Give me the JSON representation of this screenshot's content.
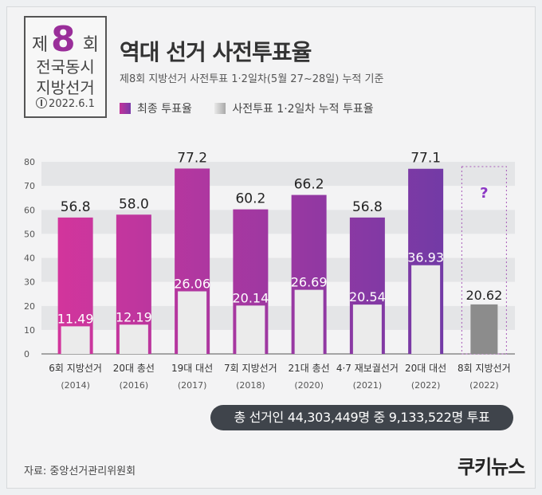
{
  "logo": {
    "top_left": "제",
    "number": "8",
    "top_right": "회",
    "line2": "전국동시",
    "line3": "지방선거",
    "date": "2022.6.1"
  },
  "header": {
    "title": "역대 선거 사전투표율",
    "subtitle": "제8회 지방선거 사전투표 1·2일차(5월 27~28일) 누적 기준"
  },
  "legend": {
    "final": "최종 투표율",
    "early": "사전투표 1·2일차 누적 투표율"
  },
  "summary_text": "총 선거인 44,303,449명 중 9,133,522명 투표",
  "source": "자료: 중앙선거관리위원회",
  "brand": {
    "text": "쿠키뉴스"
  },
  "colors": {
    "final_gradient_start": "#d5359c",
    "final_gradient_end": "#6e3aa6",
    "early_bar": "#ebebeb",
    "current_bar": "#8c8c8c",
    "question_mark": "#8b37c4",
    "band_dark": "#e4e5e7",
    "band_light": "#f3f3f4"
  },
  "chart_data": {
    "type": "bar",
    "categories": [
      "6회 지방선거",
      "20대 총선",
      "19대 대선",
      "7회 지방선거",
      "21대 총선",
      "4·7 재보궐선거",
      "20대 대선",
      "8회 지방선거"
    ],
    "category_years": [
      "(2014)",
      "(2016)",
      "(2017)",
      "(2018)",
      "(2020)",
      "(2021)",
      "(2022)",
      "(2022)"
    ],
    "series": [
      {
        "name": "최종 투표율",
        "values": [
          56.8,
          58.0,
          77.2,
          60.2,
          66.2,
          56.8,
          77.1,
          null
        ],
        "labels": [
          "56.8",
          "58.0",
          "77.2",
          "60.2",
          "66.2",
          "56.8",
          "77.1",
          "?"
        ]
      },
      {
        "name": "사전투표 1·2일차 누적 투표율",
        "values": [
          11.49,
          12.19,
          26.06,
          20.14,
          26.69,
          20.54,
          36.93,
          20.62
        ],
        "labels": [
          "11.49",
          "12.19",
          "26.06",
          "20.14",
          "26.69",
          "20.54",
          "36.93",
          "20.62"
        ]
      }
    ],
    "yticks": [
      "0",
      "10",
      "20",
      "30",
      "40",
      "50",
      "60",
      "70",
      "80"
    ],
    "ylim": [
      0,
      80
    ],
    "grid": "alternating horizontal bands"
  }
}
